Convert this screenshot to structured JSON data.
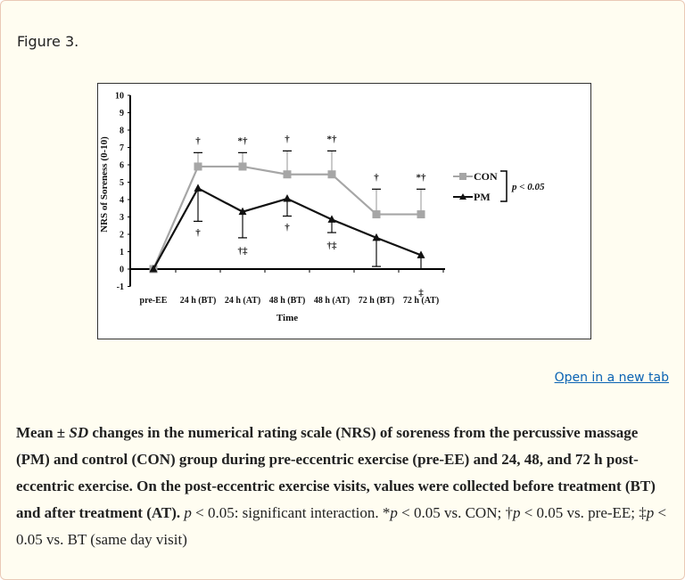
{
  "figure_title": "Figure 3.",
  "open_link": "Open in a new tab",
  "caption": {
    "bold_1": "Mean ± ",
    "bold_sd": "SD",
    "bold_2": " changes in the numerical rating scale (NRS) of soreness from the percussive massage (PM) and control (CON) group during pre-eccentric exercise (pre-EE) and 24, 48, and 72 h post-eccentric exercise. On the post-eccentric exercise visits, values were collected before treatment (BT) and after treatment (AT).",
    "p1": "p",
    "t1": " < 0.05: significant interaction. *",
    "p2": "p",
    "t2": " < 0.05 vs. CON; †",
    "p3": "p",
    "t3": " < 0.05 vs. pre-EE; ‡",
    "p4": "p",
    "t4": " < 0.05 vs. BT (same day visit)"
  },
  "chart_data": {
    "type": "line",
    "xlabel": "Time",
    "ylabel": "NRS of Soreness (0-10)",
    "ylim": [
      -1,
      10
    ],
    "yticks": [
      -1,
      0,
      1,
      2,
      3,
      4,
      5,
      6,
      7,
      8,
      9,
      10
    ],
    "categories": [
      "pre-EE",
      "24 h (BT)",
      "24 h (AT)",
      "48 h (BT)",
      "48 h (AT)",
      "72 h (BT)",
      "72 h (AT)"
    ],
    "series": [
      {
        "name": "CON",
        "color": "#a6a6a6",
        "marker": "square",
        "values": [
          0,
          5.9,
          5.9,
          5.45,
          5.45,
          3.15,
          3.15
        ],
        "sd_upper": [
          null,
          6.7,
          6.7,
          6.8,
          6.8,
          4.6,
          4.6
        ],
        "annotations": [
          "",
          "†",
          "*†",
          "†",
          "*†",
          "†",
          "*†"
        ]
      },
      {
        "name": "PM",
        "color": "#111111",
        "marker": "triangle",
        "values": [
          0,
          4.65,
          3.3,
          4.05,
          2.85,
          1.8,
          0.8
        ],
        "sd_lower": [
          null,
          2.75,
          1.8,
          3.05,
          2.1,
          0.15,
          0
        ],
        "annotations": [
          "",
          "†",
          "†‡",
          "†",
          "†‡",
          "",
          "‡"
        ]
      }
    ],
    "legend_position": "right",
    "legend_note": "p < 0.05",
    "grid": false
  }
}
